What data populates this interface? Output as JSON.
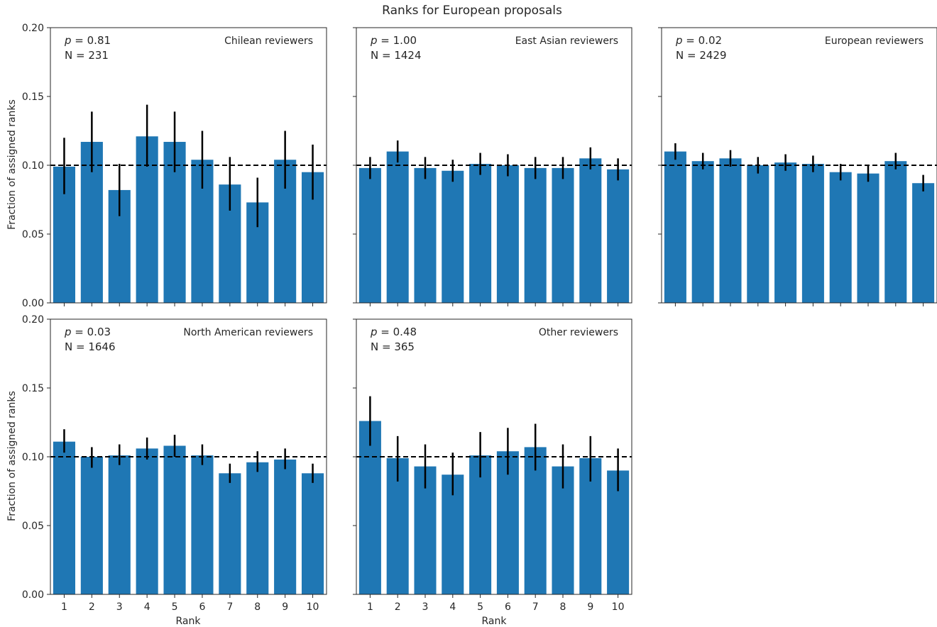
{
  "figure": {
    "title": "Ranks for European proposals",
    "ylabel": "Fraction of assigned ranks",
    "xlabel": "Rank"
  },
  "colors": {
    "bar": "#1f77b4",
    "errorbar": "#000000",
    "reference_line": "#000000"
  },
  "chart_data": [
    {
      "type": "bar",
      "panel_label": "Chilean reviewers",
      "p_label": "p = 0.81",
      "n_label": "N = 231",
      "categories": [
        "1",
        "2",
        "3",
        "4",
        "5",
        "6",
        "7",
        "8",
        "9",
        "10"
      ],
      "values": [
        0.099,
        0.117,
        0.082,
        0.121,
        0.117,
        0.104,
        0.086,
        0.073,
        0.104,
        0.095
      ],
      "err_low": [
        0.079,
        0.095,
        0.063,
        0.099,
        0.095,
        0.083,
        0.067,
        0.055,
        0.083,
        0.075
      ],
      "err_high": [
        0.12,
        0.139,
        0.101,
        0.144,
        0.139,
        0.125,
        0.106,
        0.091,
        0.125,
        0.115
      ],
      "reference_line": 0.1,
      "ylim": [
        0,
        0.2
      ],
      "yticks": [
        "0.00",
        "0.05",
        "0.10",
        "0.15",
        "0.20"
      ],
      "show_ylabels": true,
      "show_xlabels": false
    },
    {
      "type": "bar",
      "panel_label": "East Asian reviewers",
      "p_label": "p = 1.00",
      "n_label": "N = 1424",
      "categories": [
        "1",
        "2",
        "3",
        "4",
        "5",
        "6",
        "7",
        "8",
        "9",
        "10"
      ],
      "values": [
        0.098,
        0.11,
        0.098,
        0.096,
        0.101,
        0.1,
        0.098,
        0.098,
        0.105,
        0.097
      ],
      "err_low": [
        0.09,
        0.102,
        0.09,
        0.088,
        0.093,
        0.092,
        0.09,
        0.09,
        0.097,
        0.089
      ],
      "err_high": [
        0.106,
        0.118,
        0.106,
        0.104,
        0.109,
        0.108,
        0.106,
        0.106,
        0.113,
        0.105
      ],
      "reference_line": 0.1,
      "ylim": [
        0,
        0.2
      ],
      "yticks": [
        "0.00",
        "0.05",
        "0.10",
        "0.15",
        "0.20"
      ],
      "show_ylabels": false,
      "show_xlabels": false
    },
    {
      "type": "bar",
      "panel_label": "European reviewers",
      "p_label": "p = 0.02",
      "n_label": "N = 2429",
      "categories": [
        "1",
        "2",
        "3",
        "4",
        "5",
        "6",
        "7",
        "8",
        "9",
        "10"
      ],
      "values": [
        0.11,
        0.103,
        0.105,
        0.1,
        0.102,
        0.101,
        0.095,
        0.094,
        0.103,
        0.087
      ],
      "err_low": [
        0.104,
        0.097,
        0.099,
        0.094,
        0.096,
        0.095,
        0.089,
        0.088,
        0.097,
        0.081
      ],
      "err_high": [
        0.116,
        0.109,
        0.111,
        0.106,
        0.108,
        0.107,
        0.101,
        0.1,
        0.109,
        0.093
      ],
      "reference_line": 0.1,
      "ylim": [
        0,
        0.2
      ],
      "yticks": [
        "0.00",
        "0.05",
        "0.10",
        "0.15",
        "0.20"
      ],
      "show_ylabels": false,
      "show_xlabels": false
    },
    {
      "type": "bar",
      "panel_label": "North American reviewers",
      "p_label": "p = 0.03",
      "n_label": "N = 1646",
      "categories": [
        "1",
        "2",
        "3",
        "4",
        "5",
        "6",
        "7",
        "8",
        "9",
        "10"
      ],
      "values": [
        0.111,
        0.1,
        0.101,
        0.106,
        0.108,
        0.101,
        0.088,
        0.096,
        0.098,
        0.088
      ],
      "err_low": [
        0.103,
        0.092,
        0.094,
        0.098,
        0.1,
        0.094,
        0.081,
        0.089,
        0.091,
        0.081
      ],
      "err_high": [
        0.12,
        0.107,
        0.109,
        0.114,
        0.116,
        0.109,
        0.095,
        0.104,
        0.106,
        0.095
      ],
      "reference_line": 0.1,
      "ylim": [
        0,
        0.2
      ],
      "yticks": [
        "0.00",
        "0.05",
        "0.10",
        "0.15",
        "0.20"
      ],
      "show_ylabels": true,
      "show_xlabels": true
    },
    {
      "type": "bar",
      "panel_label": "Other reviewers",
      "p_label": "p = 0.48",
      "n_label": "N = 365",
      "categories": [
        "1",
        "2",
        "3",
        "4",
        "5",
        "6",
        "7",
        "8",
        "9",
        "10"
      ],
      "values": [
        0.126,
        0.099,
        0.093,
        0.087,
        0.101,
        0.104,
        0.107,
        0.093,
        0.099,
        0.09
      ],
      "err_low": [
        0.108,
        0.082,
        0.077,
        0.072,
        0.085,
        0.087,
        0.09,
        0.077,
        0.082,
        0.075
      ],
      "err_high": [
        0.144,
        0.115,
        0.109,
        0.103,
        0.118,
        0.121,
        0.124,
        0.109,
        0.115,
        0.106
      ],
      "reference_line": 0.1,
      "ylim": [
        0,
        0.2
      ],
      "yticks": [
        "0.00",
        "0.05",
        "0.10",
        "0.15",
        "0.20"
      ],
      "show_ylabels": false,
      "show_xlabels": true
    }
  ]
}
